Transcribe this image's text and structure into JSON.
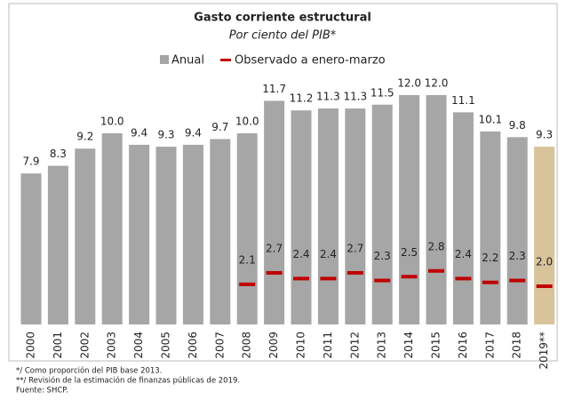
{
  "chart_data": {
    "type": "bar",
    "title": "Gasto corriente estructural",
    "subtitle": "Por ciento del PIB*",
    "categories": [
      "2000",
      "2001",
      "2002",
      "2003",
      "2004",
      "2005",
      "2006",
      "2007",
      "2008",
      "2009",
      "2010",
      "2011",
      "2012",
      "2013",
      "2014",
      "2015",
      "2016",
      "2017",
      "2018",
      "2019**"
    ],
    "series": [
      {
        "name": "Anual",
        "color": "#a6a6a6",
        "colors": [
          "#a6a6a6",
          "#a6a6a6",
          "#a6a6a6",
          "#a6a6a6",
          "#a6a6a6",
          "#a6a6a6",
          "#a6a6a6",
          "#a6a6a6",
          "#a6a6a6",
          "#a6a6a6",
          "#a6a6a6",
          "#a6a6a6",
          "#a6a6a6",
          "#a6a6a6",
          "#a6a6a6",
          "#a6a6a6",
          "#a6a6a6",
          "#a6a6a6",
          "#a6a6a6",
          "#d9c39a"
        ],
        "values": [
          7.9,
          8.3,
          9.2,
          10.0,
          9.4,
          9.3,
          9.4,
          9.7,
          10.0,
          11.7,
          11.2,
          11.3,
          11.3,
          11.5,
          12.0,
          12.0,
          11.1,
          10.1,
          9.8,
          9.3
        ],
        "value_labels": [
          "7.9",
          "8.3",
          "9.2",
          "10.0",
          "9.4",
          "9.3",
          "9.4",
          "9.7",
          "10.0",
          "11.7",
          "11.2",
          "11.3",
          "11.3",
          "11.5",
          "12.0",
          "12.0",
          "11.1",
          "10.1",
          "9.8",
          "9.3"
        ]
      },
      {
        "name": "Observado a enero-marzo",
        "color": "#c00000",
        "values": [
          null,
          null,
          null,
          null,
          null,
          null,
          null,
          null,
          2.1,
          2.7,
          2.4,
          2.4,
          2.7,
          2.3,
          2.5,
          2.8,
          2.4,
          2.2,
          2.3,
          2.0
        ],
        "value_labels": [
          null,
          null,
          null,
          null,
          null,
          null,
          null,
          null,
          "2.1",
          "2.7",
          "2.4",
          "2.4",
          "2.7",
          "2.3",
          "2.5",
          "2.8",
          "2.4",
          "2.2",
          "2.3",
          "2.0"
        ]
      }
    ],
    "notes": [
      "*/ Como proporción del PIB base 2013.",
      "**/ Revisión de la estimación de finanzas públicas de 2019.",
      "Fuente: SHCP."
    ]
  }
}
